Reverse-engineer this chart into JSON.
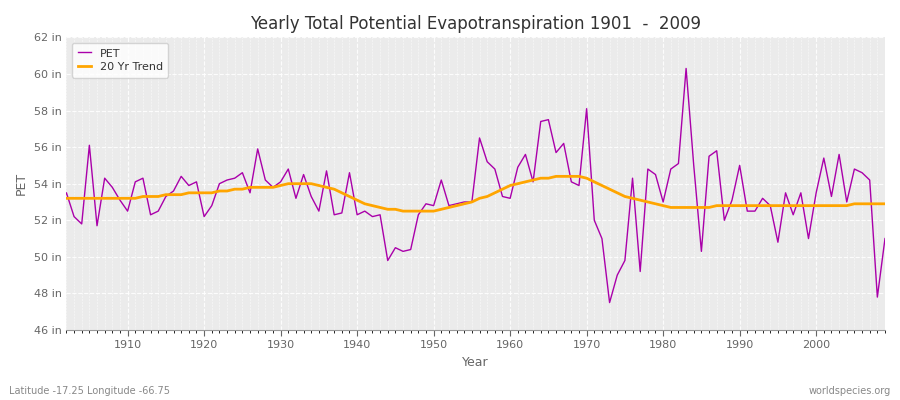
{
  "title": "Yearly Total Potential Evapotranspiration 1901  -  2009",
  "xlabel": "Year",
  "ylabel": "PET",
  "subtitle_left": "Latitude -17.25 Longitude -66.75",
  "subtitle_right": "worldspecies.org",
  "bg_color": "#ffffff",
  "plot_bg_color": "#ebebeb",
  "pet_color": "#aa00aa",
  "trend_color": "#ffa500",
  "ylim": [
    46,
    62
  ],
  "ytick_labels": [
    "46 in",
    "48 in",
    "50 in",
    "52 in",
    "54 in",
    "56 in",
    "58 in",
    "60 in",
    "62 in"
  ],
  "ytick_values": [
    46,
    48,
    50,
    52,
    54,
    56,
    58,
    60,
    62
  ],
  "xlim_left": 1902,
  "xlim_right": 2009,
  "years": [
    1901,
    1902,
    1903,
    1904,
    1905,
    1906,
    1907,
    1908,
    1909,
    1910,
    1911,
    1912,
    1913,
    1914,
    1915,
    1916,
    1917,
    1918,
    1919,
    1920,
    1921,
    1922,
    1923,
    1924,
    1925,
    1926,
    1927,
    1928,
    1929,
    1930,
    1931,
    1932,
    1933,
    1934,
    1935,
    1936,
    1937,
    1938,
    1939,
    1940,
    1941,
    1942,
    1943,
    1944,
    1945,
    1946,
    1947,
    1948,
    1949,
    1950,
    1951,
    1952,
    1953,
    1954,
    1955,
    1956,
    1957,
    1958,
    1959,
    1960,
    1961,
    1962,
    1963,
    1964,
    1965,
    1966,
    1967,
    1968,
    1969,
    1970,
    1971,
    1972,
    1973,
    1974,
    1975,
    1976,
    1977,
    1978,
    1979,
    1980,
    1981,
    1982,
    1983,
    1984,
    1985,
    1986,
    1987,
    1988,
    1989,
    1990,
    1991,
    1992,
    1993,
    1994,
    1995,
    1996,
    1997,
    1998,
    1999,
    2000,
    2001,
    2002,
    2003,
    2004,
    2005,
    2006,
    2007,
    2008,
    2009
  ],
  "pet": [
    52.8,
    53.5,
    52.2,
    51.8,
    56.1,
    51.7,
    54.3,
    53.8,
    53.1,
    52.5,
    54.1,
    54.3,
    52.3,
    52.5,
    53.3,
    53.6,
    54.4,
    53.9,
    54.1,
    52.2,
    52.8,
    54.0,
    54.2,
    54.3,
    54.6,
    53.5,
    55.9,
    54.2,
    53.8,
    54.1,
    54.8,
    53.2,
    54.5,
    53.3,
    52.5,
    54.7,
    52.3,
    52.4,
    54.6,
    52.3,
    52.5,
    52.2,
    52.3,
    49.8,
    50.5,
    50.3,
    50.4,
    52.3,
    52.9,
    52.8,
    54.2,
    52.8,
    52.9,
    53.0,
    53.0,
    56.5,
    55.2,
    54.8,
    53.3,
    53.2,
    54.9,
    55.6,
    54.1,
    57.4,
    57.5,
    55.7,
    56.2,
    54.1,
    53.9,
    58.1,
    52.0,
    51.0,
    47.5,
    49.0,
    49.8,
    54.3,
    49.2,
    54.8,
    54.5,
    53.0,
    54.8,
    55.1,
    60.3,
    55.0,
    50.3,
    55.5,
    55.8,
    52.0,
    53.1,
    55.0,
    52.5,
    52.5,
    53.2,
    52.8,
    50.8,
    53.5,
    52.3,
    53.5,
    51.0,
    53.5,
    55.4,
    53.3,
    55.6,
    53.0,
    54.8,
    54.6,
    54.2,
    47.8,
    51.0
  ],
  "trend": [
    53.2,
    53.2,
    53.2,
    53.2,
    53.2,
    53.2,
    53.2,
    53.2,
    53.2,
    53.2,
    53.2,
    53.3,
    53.3,
    53.3,
    53.4,
    53.4,
    53.4,
    53.5,
    53.5,
    53.5,
    53.5,
    53.6,
    53.6,
    53.7,
    53.7,
    53.8,
    53.8,
    53.8,
    53.8,
    53.9,
    54.0,
    54.0,
    54.0,
    54.0,
    53.9,
    53.8,
    53.7,
    53.5,
    53.3,
    53.1,
    52.9,
    52.8,
    52.7,
    52.6,
    52.6,
    52.5,
    52.5,
    52.5,
    52.5,
    52.5,
    52.6,
    52.7,
    52.8,
    52.9,
    53.0,
    53.2,
    53.3,
    53.5,
    53.7,
    53.9,
    54.0,
    54.1,
    54.2,
    54.3,
    54.3,
    54.4,
    54.4,
    54.4,
    54.4,
    54.3,
    54.1,
    53.9,
    53.7,
    53.5,
    53.3,
    53.2,
    53.1,
    53.0,
    52.9,
    52.8,
    52.7,
    52.7,
    52.7,
    52.7,
    52.7,
    52.7,
    52.8,
    52.8,
    52.8,
    52.8,
    52.8,
    52.8,
    52.8,
    52.8,
    52.8,
    52.8,
    52.8,
    52.8,
    52.8,
    52.8,
    52.8,
    52.8,
    52.8,
    52.8,
    52.9,
    52.9,
    52.9,
    52.9,
    52.9
  ]
}
